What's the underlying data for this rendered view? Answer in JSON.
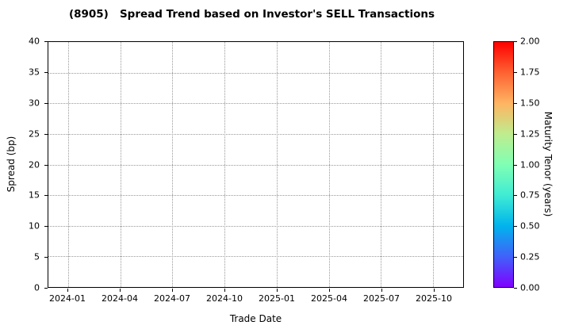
{
  "chart_data": {
    "type": "scatter",
    "title": "(8905)   Spread Trend based on Investor's SELL Transactions",
    "xlabel": "Trade Date",
    "ylabel": "Spread (bp)",
    "x_ticks": [
      "2024-01",
      "2024-04",
      "2024-07",
      "2024-10",
      "2025-01",
      "2025-04",
      "2025-07",
      "2025-10"
    ],
    "y_ticks": [
      0,
      5,
      10,
      15,
      20,
      25,
      30,
      35,
      40
    ],
    "ylim": [
      0,
      40
    ],
    "grid": true,
    "grid_style": "dotted",
    "points": [],
    "colorbar": {
      "label": "Maturity Tenor (years)",
      "ticks": [
        "0.00",
        "0.25",
        "0.50",
        "0.75",
        "1.00",
        "1.25",
        "1.50",
        "1.75",
        "2.00"
      ],
      "range": [
        0,
        2
      ],
      "colormap": "rainbow",
      "colors": [
        "#8000ff",
        "#4062fa",
        "#00b4ec",
        "#40ecd4",
        "#80ffb4",
        "#bfec8e",
        "#ffb462",
        "#ff6232",
        "#ff0000"
      ]
    }
  }
}
